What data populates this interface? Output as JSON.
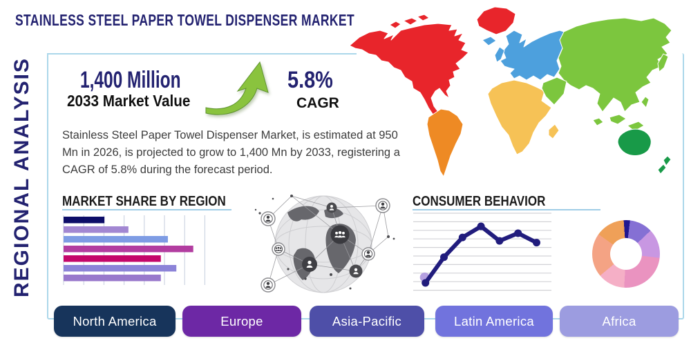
{
  "title": "STAINLESS STEEL PAPER TOWEL DISPENSER MARKET",
  "side_label": "REGIONAL ANALYSIS",
  "stats": {
    "market_value": "1,400 Million",
    "market_value_label": "2033 Market Value",
    "cagr_value": "5.8%",
    "cagr_label": "CAGR",
    "arrow_color": "#8ac33e",
    "arrow_edge_color": "#5f9430"
  },
  "description": "Stainless Steel Paper Towel Dispenser Market, is estimated at 950 Mn in 2026, is projected to grow to 1,400 Mn by 2033, registering a CAGR of 5.8% during the forecast period.",
  "sections": {
    "market_share_title": "MARKET SHARE BY REGION",
    "consumer_behavior_title": "CONSUMER BEHAVIOR"
  },
  "chart_data": [
    {
      "type": "bar",
      "orientation": "horizontal",
      "title": "MARKET SHARE BY REGION",
      "categories": null,
      "values": [
        29,
        46,
        74,
        92,
        69,
        80,
        69
      ],
      "xlim": [
        0,
        100
      ],
      "grid": "vertical",
      "colors": [
        "#0d0d68",
        "#a287d2",
        "#7e9ce4",
        "#b23da0",
        "#c4066a",
        "#8c83d8",
        "#9878cc"
      ]
    },
    {
      "type": "line",
      "title": "CONSUMER BEHAVIOR",
      "x": [
        1,
        2,
        3,
        4,
        5,
        6,
        7
      ],
      "values": [
        1.0,
        4.0,
        6.3,
        7.6,
        5.9,
        6.8,
        5.7
      ],
      "ylim": [
        0,
        10
      ],
      "grid": "horizontal",
      "line_color": "#211c7d",
      "first_point_halo_color": "#b5a0e0"
    },
    {
      "type": "pie",
      "donut": true,
      "start_angle_deg": -4,
      "slices": [
        {
          "value": 3,
          "color": "#201690"
        },
        {
          "value": 11,
          "color": "#8570d4"
        },
        {
          "value": 14,
          "color": "#c897e2"
        },
        {
          "value": 24,
          "color": "#ea93c0"
        },
        {
          "value": 13,
          "color": "#f5afc6"
        },
        {
          "value": 21,
          "color": "#f4a384"
        },
        {
          "value": 14,
          "color": "#efa058"
        }
      ]
    }
  ],
  "map": {
    "region_colors": {
      "north_america": "#e8252b",
      "greenland": "#e8252b",
      "south_america": "#ee8a24",
      "europe": "#4da0dd",
      "africa": "#f6c256",
      "asia": "#7cc63e",
      "oceania": "#189a48"
    }
  },
  "region_buttons": [
    {
      "label": "North America",
      "color": "#17345b"
    },
    {
      "label": "Europe",
      "color": "#6d28a5"
    },
    {
      "label": "Asia-Pacific",
      "color": "#4e4fa8"
    },
    {
      "label": "Latin America",
      "color": "#7173dd"
    },
    {
      "label": "Africa",
      "color": "#9c9ce0"
    }
  ],
  "theme": {
    "navy": "#232270",
    "heading_color": "#1b1b1b",
    "panel_border": "#abd7ea",
    "underline": "#9fcde6"
  }
}
